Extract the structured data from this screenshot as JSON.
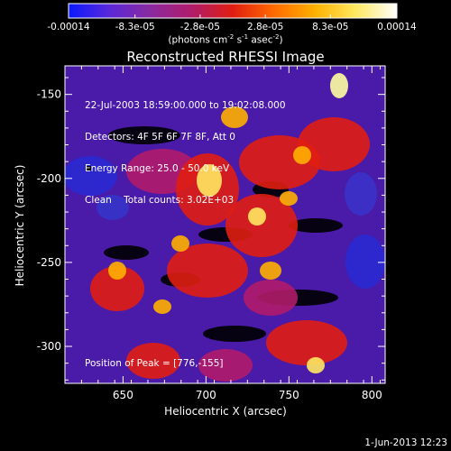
{
  "colorbar": {
    "tick_labels": [
      "-0.00014",
      "-8.3e-05",
      "-2.8e-05",
      "2.8e-05",
      "8.3e-05",
      "0.00014"
    ],
    "units_prefix": "(photons cm",
    "units_sup1": "-2",
    "units_mid1": " s",
    "units_sup2": "-1",
    "units_mid2": " asec",
    "units_sup3": "-2",
    "units_suffix": ")",
    "colors": [
      "#0a1aff",
      "#5a28d8",
      "#8a2aa0",
      "#b01c6a",
      "#e01e12",
      "#ff6a00",
      "#ffb000",
      "#ffe860",
      "#ffffff"
    ]
  },
  "chart_data": {
    "type": "heatmap",
    "title": "Reconstructed RHESSI Image",
    "xlabel": "Heliocentric X (arcsec)",
    "ylabel": "Heliocentric Y (arcsec)",
    "xlim": [
      615,
      808
    ],
    "ylim": [
      -322,
      -133
    ],
    "x_ticks": [
      650,
      700,
      750,
      800
    ],
    "y_ticks": [
      -150,
      -200,
      -250,
      -300
    ],
    "peak": [
      776,
      -155
    ],
    "color_range": [
      -0.00014,
      0.00014
    ]
  },
  "info": {
    "line1": "22-Jul-2003 18:59:00.000 to 19:02:08.000",
    "line2": "Detectors: 4F 5F 6F 7F 8F, Att 0",
    "line3": "Energy Range: 25.0 - 50.0 keV",
    "line4": "Clean    Total counts: 3.02E+03",
    "peak_text": "Position of Peak = [776,-155]"
  },
  "timestamp": "1-Jun-2013 12:23"
}
